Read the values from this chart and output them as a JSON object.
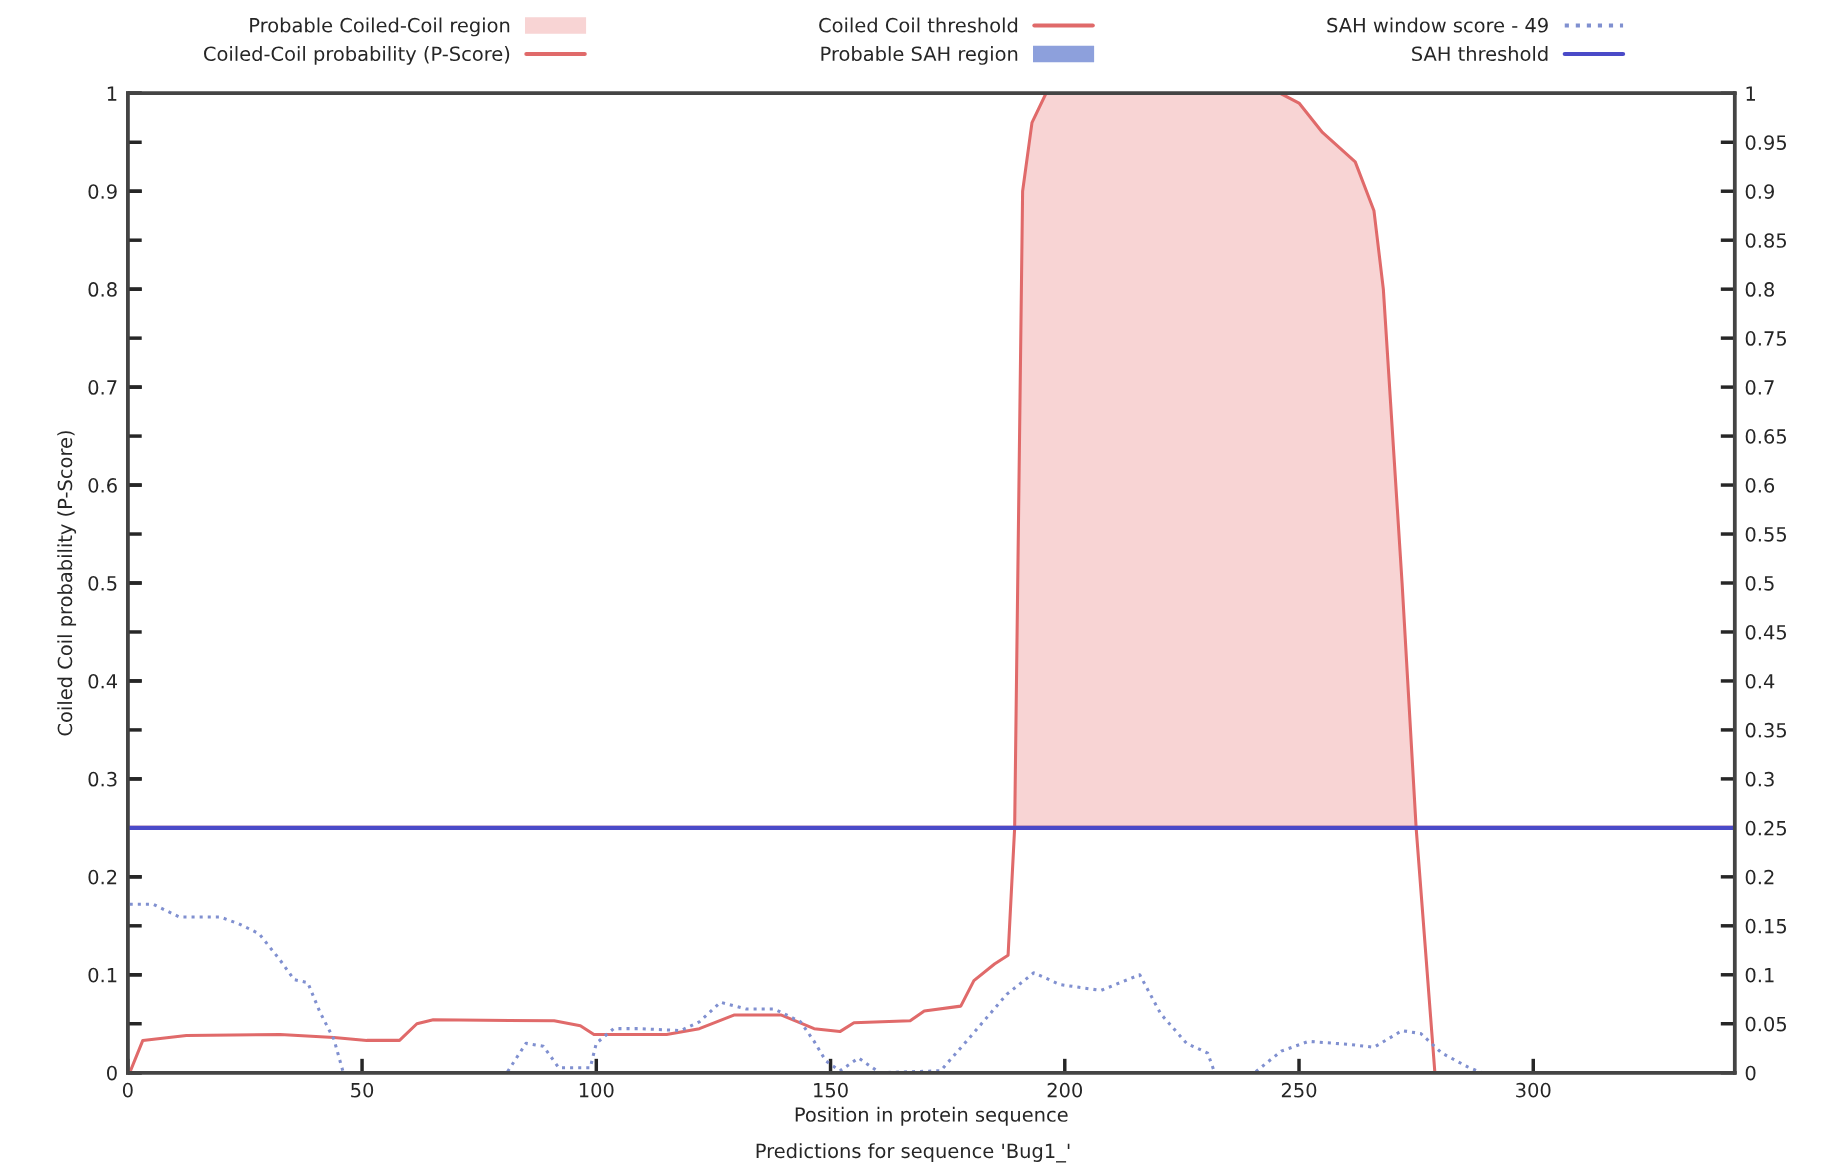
{
  "chart_data": {
    "type": "line",
    "xlabel": "Position in protein sequence",
    "ylabel": "Coiled Coil probability (P-Score)",
    "annotations": [
      "Predictions for sequence 'Bug1_'"
    ],
    "xlim": [
      0,
      343
    ],
    "xticks": [
      0,
      50,
      100,
      150,
      200,
      250,
      300
    ],
    "ylim": [
      0,
      1
    ],
    "yticks": [
      0,
      0.1,
      0.2,
      0.3,
      0.4,
      0.5,
      0.6,
      0.7,
      0.8,
      0.9,
      1
    ],
    "y2lim": [
      0,
      1
    ],
    "y2ticks": [
      0,
      0.05,
      0.1,
      0.15,
      0.2,
      0.25,
      0.3,
      0.35,
      0.4,
      0.45,
      0.5,
      0.55,
      0.6,
      0.65,
      0.7,
      0.75,
      0.8,
      0.85,
      0.9,
      0.95,
      1
    ],
    "grid": false,
    "legend": "top",
    "line_style": "solid",
    "marker": "none",
    "series": [
      {
        "name": "Probable Coiled-Coil region",
        "type": "area",
        "color": "#f8d4d4",
        "x": [
          189.3,
          191,
          193,
          196,
          246,
          250,
          255,
          262,
          266,
          268,
          272,
          275
        ],
        "values": [
          0.25,
          0.9,
          0.97,
          1,
          1,
          0.99,
          0.96,
          0.93,
          0.88,
          0.8,
          0.5,
          0.25
        ]
      },
      {
        "name": "Coiled-Coil probability (P-Score)",
        "color": "#e06a6a",
        "x": [
          0.4,
          3.2,
          12.5,
          32.5,
          44,
          51,
          58,
          61.7,
          65.2,
          91,
          96.6,
          99.5,
          115,
          122,
          129.5,
          139.4,
          146.5,
          152,
          155,
          167,
          170,
          177.8,
          180.6,
          185,
          187.9,
          189.3,
          191,
          193,
          196,
          246,
          250,
          255,
          262,
          266,
          268,
          272,
          275,
          279,
          343
        ],
        "values": [
          0,
          0.033,
          0.038,
          0.039,
          0.036,
          0.033,
          0.033,
          0.05,
          0.054,
          0.053,
          0.048,
          0.039,
          0.039,
          0.045,
          0.059,
          0.059,
          0.045,
          0.042,
          0.051,
          0.053,
          0.063,
          0.068,
          0.094,
          0.111,
          0.12,
          0.25,
          0.9,
          0.97,
          1,
          1,
          0.99,
          0.96,
          0.93,
          0.88,
          0.8,
          0.5,
          0.25,
          0,
          0
        ]
      },
      {
        "name": "Probable SAH region",
        "type": "area",
        "color": "#8da0dc"
      },
      {
        "name": "SAH window score - 49",
        "type": "line",
        "axis": "y2",
        "line_style": "dotted",
        "color": "#8090d0",
        "x": [
          0.4,
          5.4,
          11,
          19.7,
          23.7,
          28,
          32.5,
          35.5,
          38.4,
          41,
          44,
          46,
          80.9,
          85,
          88.7,
          92,
          98.7,
          100,
          103.7,
          109.4,
          118,
          122,
          126.5,
          132,
          138,
          143.6,
          146.5,
          149,
          152,
          156,
          160.5,
          173.5,
          179,
          187.6,
          193.4,
          199,
          207.7,
          216,
          220.5,
          226,
          230.5,
          232,
          240.5,
          246.2,
          252,
          260.5,
          266,
          272,
          276,
          280.5,
          286,
          289
        ],
        "values": [
          0.172,
          0.172,
          0.159,
          0.159,
          0.152,
          0.142,
          0.115,
          0.095,
          0.092,
          0.062,
          0.034,
          0,
          0,
          0.03,
          0.027,
          0.005,
          0.005,
          0.03,
          0.045,
          0.045,
          0.043,
          0.052,
          0.072,
          0.065,
          0.065,
          0.052,
          0.032,
          0.012,
          0.002,
          0.015,
          0,
          0.002,
          0.032,
          0.08,
          0.102,
          0.09,
          0.084,
          0.1,
          0.06,
          0.03,
          0.02,
          0,
          0,
          0.022,
          0.032,
          0.029,
          0.026,
          0.043,
          0.04,
          0.02,
          0.006,
          0
        ]
      }
    ],
    "ref_lines": [
      {
        "axis": "y",
        "value": 0.25,
        "label": "Coiled Coil threshold",
        "color": "#e06a6a"
      },
      {
        "axis": "y2",
        "value": 0.25,
        "label": "SAH threshold",
        "color": "#4a4ac8"
      }
    ]
  }
}
